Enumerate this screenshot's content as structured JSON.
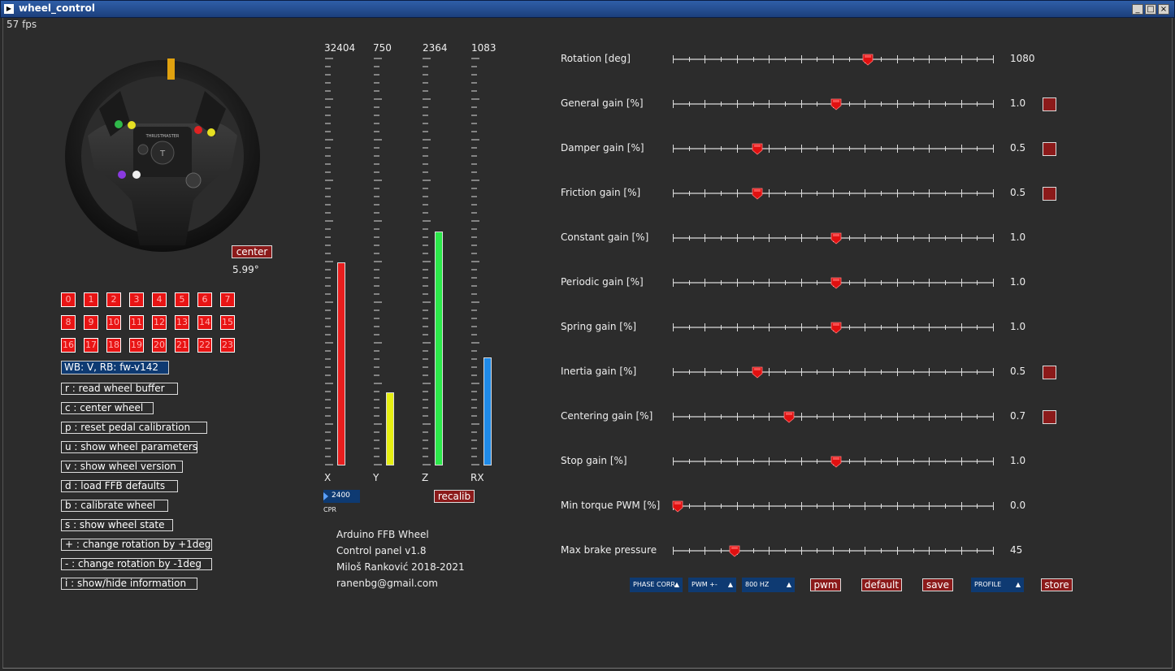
{
  "window": {
    "title": "wheel_control",
    "icon": "app-icon",
    "minimize": "_",
    "maximize": "□",
    "close": "×"
  },
  "fps": "57 fps",
  "wheel": {
    "center_label": "center",
    "angle": "5.99°",
    "logo": "THRUSTMASTER"
  },
  "buttons": [
    "0",
    "1",
    "2",
    "3",
    "4",
    "5",
    "6",
    "7",
    "8",
    "9",
    "10",
    "11",
    "12",
    "13",
    "14",
    "15",
    "16",
    "17",
    "18",
    "19",
    "20",
    "21",
    "22",
    "23"
  ],
  "wb_label": "WB: V, RB: fw-v142",
  "commands": [
    "r : read wheel buffer",
    "c : center wheel",
    "p : reset pedal calibration",
    "u : show wheel parameters",
    "v : show wheel version",
    "d : load FFB defaults",
    "b : calibrate wheel",
    "s : show wheel state",
    "+ : change rotation by +1deg",
    "- : change rotation by -1deg",
    "i : show/hide information"
  ],
  "axes": [
    {
      "name": "X",
      "value": "32404",
      "fill": 0.5,
      "color": "#e81e1e"
    },
    {
      "name": "Y",
      "value": "750",
      "fill": 0.18,
      "color": "#e6ef12"
    },
    {
      "name": "Z",
      "value": "2364",
      "fill": 0.575,
      "color": "#2ce84a"
    },
    {
      "name": "RX",
      "value": "1083",
      "fill": 0.265,
      "color": "#1e8ae8"
    }
  ],
  "cpr": {
    "value": "2400",
    "label": "CPR"
  },
  "recalib_label": "recalib",
  "info": {
    "line1": "Arduino FFB Wheel",
    "line2": "Control panel v1.8",
    "line3": "Miloš Ranković 2018-2021",
    "line4": "ranenbg@gmail.com"
  },
  "sliders": [
    {
      "label": "Rotation [deg]",
      "value": "1080",
      "pos": 0.6,
      "checkbox": false
    },
    {
      "label": "General gain [%]",
      "value": "1.0",
      "pos": 0.5,
      "checkbox": true
    },
    {
      "label": "Damper gain [%]",
      "value": "0.5",
      "pos": 0.25,
      "checkbox": true
    },
    {
      "label": "Friction gain [%]",
      "value": "0.5",
      "pos": 0.25,
      "checkbox": true
    },
    {
      "label": "Constant gain [%]",
      "value": "1.0",
      "pos": 0.5,
      "checkbox": false
    },
    {
      "label": "Periodic gain [%]",
      "value": "1.0",
      "pos": 0.5,
      "checkbox": false
    },
    {
      "label": "Spring gain [%]",
      "value": "1.0",
      "pos": 0.5,
      "checkbox": false
    },
    {
      "label": "Inertia gain [%]",
      "value": "0.5",
      "pos": 0.25,
      "checkbox": true
    },
    {
      "label": "Centering gain [%]",
      "value": "0.7",
      "pos": 0.35,
      "checkbox": true
    },
    {
      "label": "Stop gain [%]",
      "value": "1.0",
      "pos": 0.5,
      "checkbox": false
    },
    {
      "label": "Min torque PWM [%]",
      "value": "0.0",
      "pos": 0.0,
      "checkbox": false
    },
    {
      "label": "Max brake pressure",
      "value": "45",
      "pos": 0.18,
      "checkbox": false
    }
  ],
  "dropdowns": {
    "phase": "PHASE CORR",
    "pwm_mode": "PWM +-",
    "freq": "800 HZ",
    "profile": "PROFILE",
    "caret": "▲"
  },
  "action_buttons": {
    "pwm": "pwm",
    "default": "default",
    "save": "save",
    "store": "store"
  }
}
